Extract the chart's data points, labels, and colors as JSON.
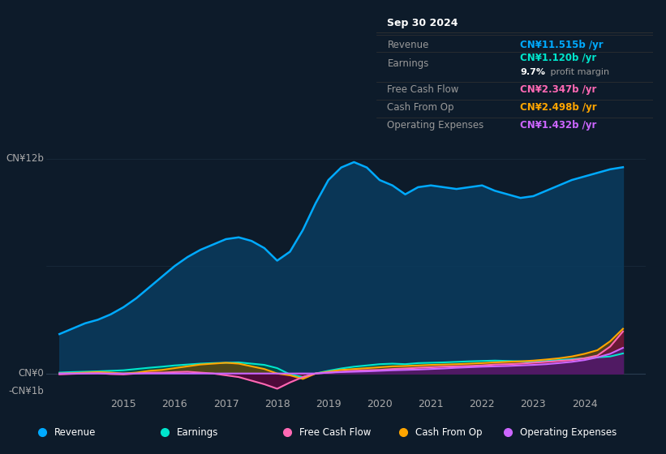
{
  "bg_color": "#0d1b2a",
  "plot_bg_color": "#0d1b2a",
  "title_box_bg": "#000000",
  "title_box_text": "Sep 30 2024",
  "info_rows": [
    {
      "label": "Revenue",
      "value": "CN¥11.515b /yr",
      "value_color": "#00aaff",
      "extra": null
    },
    {
      "label": "Earnings",
      "value": "CN¥1.120b /yr",
      "value_color": "#00e5cc",
      "extra": "9.7% profit margin"
    },
    {
      "label": "Free Cash Flow",
      "value": "CN¥2.347b /yr",
      "value_color": "#ff69b4",
      "extra": null
    },
    {
      "label": "Cash From Op",
      "value": "CN¥2.498b /yr",
      "value_color": "#ffa500",
      "extra": null
    },
    {
      "label": "Operating Expenses",
      "value": "CN¥1.432b /yr",
      "value_color": "#cc66ff",
      "extra": null
    }
  ],
  "ylabel_top": "CN¥12b",
  "ylabel_zero": "CN¥0",
  "ylabel_neg": "-CN¥1b",
  "ylim": [
    -1.2,
    13.5
  ],
  "xlim_start": 2013.5,
  "xlim_end": 2025.2,
  "xticks": [
    2015,
    2016,
    2017,
    2018,
    2019,
    2020,
    2021,
    2022,
    2023,
    2024
  ],
  "legend_items": [
    {
      "label": "Revenue",
      "color": "#00aaff"
    },
    {
      "label": "Earnings",
      "color": "#00e5cc"
    },
    {
      "label": "Free Cash Flow",
      "color": "#ff69b4"
    },
    {
      "label": "Cash From Op",
      "color": "#ffa500"
    },
    {
      "label": "Operating Expenses",
      "color": "#cc66ff"
    }
  ],
  "revenue": {
    "x": [
      2013.75,
      2014.0,
      2014.25,
      2014.5,
      2014.75,
      2015.0,
      2015.25,
      2015.5,
      2015.75,
      2016.0,
      2016.25,
      2016.5,
      2016.75,
      2017.0,
      2017.25,
      2017.5,
      2017.75,
      2018.0,
      2018.25,
      2018.5,
      2018.75,
      2019.0,
      2019.25,
      2019.5,
      2019.75,
      2020.0,
      2020.25,
      2020.5,
      2020.75,
      2021.0,
      2021.25,
      2021.5,
      2021.75,
      2022.0,
      2022.25,
      2022.5,
      2022.75,
      2023.0,
      2023.25,
      2023.5,
      2023.75,
      2024.0,
      2024.25,
      2024.5,
      2024.75
    ],
    "y": [
      2.2,
      2.5,
      2.8,
      3.0,
      3.3,
      3.7,
      4.2,
      4.8,
      5.4,
      6.0,
      6.5,
      6.9,
      7.2,
      7.5,
      7.6,
      7.4,
      7.0,
      6.3,
      6.8,
      8.0,
      9.5,
      10.8,
      11.5,
      11.8,
      11.5,
      10.8,
      10.5,
      10.0,
      10.4,
      10.5,
      10.4,
      10.3,
      10.4,
      10.5,
      10.2,
      10.0,
      9.8,
      9.9,
      10.2,
      10.5,
      10.8,
      11.0,
      11.2,
      11.4,
      11.515
    ]
  },
  "earnings": {
    "x": [
      2013.75,
      2014.0,
      2014.25,
      2014.5,
      2014.75,
      2015.0,
      2015.25,
      2015.5,
      2015.75,
      2016.0,
      2016.25,
      2016.5,
      2016.75,
      2017.0,
      2017.25,
      2017.5,
      2017.75,
      2018.0,
      2018.25,
      2018.5,
      2018.75,
      2019.0,
      2019.25,
      2019.5,
      2019.75,
      2020.0,
      2020.25,
      2020.5,
      2020.75,
      2021.0,
      2021.25,
      2021.5,
      2021.75,
      2022.0,
      2022.25,
      2022.5,
      2022.75,
      2023.0,
      2023.25,
      2023.5,
      2023.75,
      2024.0,
      2024.25,
      2024.5,
      2024.75
    ],
    "y": [
      0.05,
      0.08,
      0.1,
      0.12,
      0.15,
      0.18,
      0.25,
      0.32,
      0.38,
      0.45,
      0.5,
      0.55,
      0.58,
      0.6,
      0.62,
      0.55,
      0.48,
      0.3,
      -0.05,
      -0.2,
      0.0,
      0.15,
      0.28,
      0.38,
      0.45,
      0.52,
      0.55,
      0.52,
      0.58,
      0.6,
      0.62,
      0.65,
      0.68,
      0.7,
      0.72,
      0.7,
      0.68,
      0.65,
      0.7,
      0.75,
      0.8,
      0.85,
      0.9,
      0.95,
      1.12
    ]
  },
  "free_cash_flow": {
    "x": [
      2013.75,
      2014.0,
      2014.25,
      2014.5,
      2014.75,
      2015.0,
      2015.25,
      2015.5,
      2015.75,
      2016.0,
      2016.25,
      2016.5,
      2016.75,
      2017.0,
      2017.25,
      2017.5,
      2017.75,
      2018.0,
      2018.25,
      2018.5,
      2018.75,
      2019.0,
      2019.25,
      2019.5,
      2019.75,
      2020.0,
      2020.25,
      2020.5,
      2020.75,
      2021.0,
      2021.25,
      2021.5,
      2021.75,
      2022.0,
      2022.25,
      2022.5,
      2022.75,
      2023.0,
      2023.25,
      2023.5,
      2023.75,
      2024.0,
      2024.25,
      2024.5,
      2024.75
    ],
    "y": [
      -0.05,
      -0.02,
      0.0,
      0.02,
      -0.03,
      -0.05,
      0.0,
      0.05,
      0.05,
      0.08,
      0.1,
      0.05,
      0.0,
      -0.1,
      -0.2,
      -0.4,
      -0.6,
      -0.85,
      -0.5,
      -0.2,
      0.0,
      0.05,
      0.1,
      0.15,
      0.18,
      0.2,
      0.25,
      0.28,
      0.32,
      0.35,
      0.38,
      0.4,
      0.42,
      0.45,
      0.5,
      0.52,
      0.55,
      0.6,
      0.65,
      0.7,
      0.75,
      0.85,
      1.0,
      1.5,
      2.347
    ]
  },
  "cash_from_op": {
    "x": [
      2013.75,
      2014.0,
      2014.25,
      2014.5,
      2014.75,
      2015.0,
      2015.25,
      2015.5,
      2015.75,
      2016.0,
      2016.25,
      2016.5,
      2016.75,
      2017.0,
      2017.25,
      2017.5,
      2017.75,
      2018.0,
      2018.25,
      2018.5,
      2018.75,
      2019.0,
      2019.25,
      2019.5,
      2019.75,
      2020.0,
      2020.25,
      2020.5,
      2020.75,
      2021.0,
      2021.25,
      2021.5,
      2021.75,
      2022.0,
      2022.25,
      2022.5,
      2022.75,
      2023.0,
      2023.25,
      2023.5,
      2023.75,
      2024.0,
      2024.25,
      2024.5,
      2024.75
    ],
    "y": [
      0.0,
      0.02,
      0.05,
      0.08,
      0.05,
      0.0,
      0.05,
      0.15,
      0.2,
      0.3,
      0.4,
      0.5,
      0.55,
      0.6,
      0.55,
      0.4,
      0.25,
      0.0,
      -0.1,
      -0.3,
      0.0,
      0.1,
      0.2,
      0.25,
      0.3,
      0.35,
      0.4,
      0.42,
      0.45,
      0.48,
      0.5,
      0.52,
      0.55,
      0.58,
      0.62,
      0.65,
      0.68,
      0.72,
      0.78,
      0.85,
      0.95,
      1.1,
      1.3,
      1.8,
      2.498
    ]
  },
  "op_expenses": {
    "x": [
      2013.75,
      2014.0,
      2014.25,
      2014.5,
      2014.75,
      2015.0,
      2015.25,
      2015.5,
      2015.75,
      2016.0,
      2016.25,
      2016.5,
      2016.75,
      2017.0,
      2017.25,
      2017.5,
      2017.75,
      2018.0,
      2018.25,
      2018.5,
      2018.75,
      2019.0,
      2019.25,
      2019.5,
      2019.75,
      2020.0,
      2020.25,
      2020.5,
      2020.75,
      2021.0,
      2021.25,
      2021.5,
      2021.75,
      2022.0,
      2022.25,
      2022.5,
      2022.75,
      2023.0,
      2023.25,
      2023.5,
      2023.75,
      2024.0,
      2024.25,
      2024.5,
      2024.75
    ],
    "y": [
      0.0,
      0.0,
      0.0,
      0.0,
      0.0,
      0.0,
      0.0,
      0.0,
      0.0,
      0.0,
      0.0,
      0.0,
      0.0,
      0.0,
      0.0,
      0.0,
      0.0,
      0.0,
      0.0,
      0.0,
      0.0,
      0.05,
      0.08,
      0.1,
      0.12,
      0.15,
      0.18,
      0.2,
      0.22,
      0.25,
      0.28,
      0.32,
      0.35,
      0.38,
      0.4,
      0.42,
      0.45,
      0.48,
      0.52,
      0.58,
      0.65,
      0.75,
      0.9,
      1.1,
      1.432
    ]
  }
}
